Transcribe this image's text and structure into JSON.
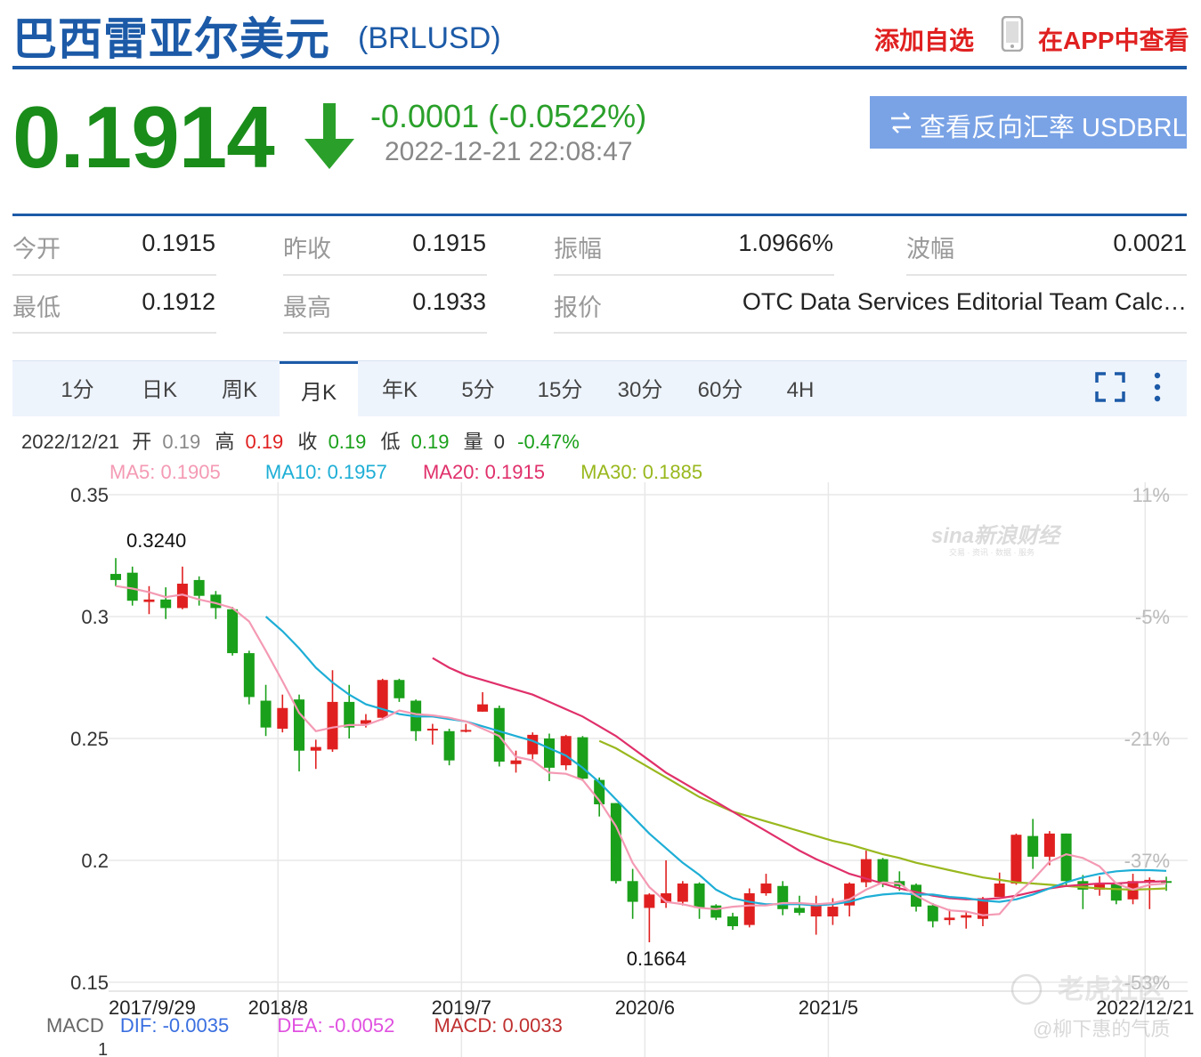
{
  "header": {
    "title": "巴西雷亚尔美元",
    "symbol": "(BRLUSD)",
    "add_favorite": "添加自选",
    "app_view": "在APP中查看"
  },
  "quote": {
    "price": "0.1914",
    "change": "-0.0001 (-0.0522%)",
    "timestamp": "2022-12-21 22:08:47",
    "reverse_button": "查看反向汇率 USDBRL",
    "down_color": "#2aa02a"
  },
  "stats": [
    {
      "label": "今开",
      "value": "0.1915"
    },
    {
      "label": "昨收",
      "value": "0.1915"
    },
    {
      "label": "振幅",
      "value": "1.0966%"
    },
    {
      "label": "波幅",
      "value": "0.0021"
    },
    {
      "label": "最低",
      "value": "0.1912"
    },
    {
      "label": "最高",
      "value": "0.1933"
    },
    {
      "label": "报价",
      "value": "OTC Data Services Editorial Team Calc…"
    }
  ],
  "tabs": [
    {
      "label": "1分",
      "active": false
    },
    {
      "label": "日K",
      "active": false
    },
    {
      "label": "周K",
      "active": false
    },
    {
      "label": "月K",
      "active": true
    },
    {
      "label": "年K",
      "active": false
    },
    {
      "label": "5分",
      "active": false
    },
    {
      "label": "15分",
      "active": false
    },
    {
      "label": "30分",
      "active": false
    },
    {
      "label": "60分",
      "active": false
    },
    {
      "label": "4H",
      "active": false
    }
  ],
  "chart_data": {
    "type": "candlestick",
    "info_line": {
      "date": "2022/12/21",
      "open_label": "开",
      "open": "0.19",
      "high_label": "高",
      "high": "0.19",
      "close_label": "收",
      "close": "0.19",
      "low_label": "低",
      "low": "0.19",
      "volume_label": "量",
      "volume": "0",
      "change_pct": "-0.47%"
    },
    "ma_legend": [
      {
        "label": "MA5: 0.1905",
        "color": "#f49ab4"
      },
      {
        "label": "MA10: 0.1957",
        "color": "#1eaed6"
      },
      {
        "label": "MA20: 0.1915",
        "color": "#e0306a"
      },
      {
        "label": "MA30: 0.1885",
        "color": "#99b81e"
      }
    ],
    "ylim": [
      0.15,
      0.35
    ],
    "y_ticks": [
      "0.35",
      "0.3",
      "0.25",
      "0.2",
      "0.15"
    ],
    "y_tick_values": [
      0.35,
      0.3,
      0.25,
      0.2,
      0.15
    ],
    "right_ticks": [
      "11%",
      "-5%",
      "-21%",
      "-37%",
      "-53%"
    ],
    "x_ticks": [
      {
        "index": 0,
        "label": "2017/9/29"
      },
      {
        "index": 10,
        "label": "2018/8"
      },
      {
        "index": 21,
        "label": "2019/7"
      },
      {
        "index": 32,
        "label": "2020/6"
      },
      {
        "index": 43,
        "label": "2021/5"
      },
      {
        "index": 62,
        "label": "2022/12/21"
      }
    ],
    "max_annotation": {
      "index": 0,
      "label": "0.3240"
    },
    "min_annotation": {
      "index": 32,
      "label": "0.1664"
    },
    "up_color": "#e02020",
    "down_color": "#1aa01a",
    "ohlc": [
      [
        0.3175,
        0.315,
        0.324,
        0.3125
      ],
      [
        0.318,
        0.3065,
        0.3205,
        0.3045
      ],
      [
        0.306,
        0.307,
        0.3125,
        0.301
      ],
      [
        0.307,
        0.3035,
        0.312,
        0.299
      ],
      [
        0.3035,
        0.3135,
        0.3205,
        0.303
      ],
      [
        0.315,
        0.3085,
        0.3165,
        0.3045
      ],
      [
        0.309,
        0.3035,
        0.3105,
        0.299
      ],
      [
        0.303,
        0.285,
        0.304,
        0.284
      ],
      [
        0.285,
        0.267,
        0.286,
        0.264
      ],
      [
        0.2655,
        0.2545,
        0.272,
        0.251
      ],
      [
        0.254,
        0.2625,
        0.268,
        0.2525
      ],
      [
        0.266,
        0.245,
        0.268,
        0.2365
      ],
      [
        0.245,
        0.2465,
        0.2495,
        0.2375
      ],
      [
        0.2455,
        0.265,
        0.278,
        0.2445
      ],
      [
        0.265,
        0.2545,
        0.272,
        0.25
      ],
      [
        0.256,
        0.2575,
        0.26,
        0.2545
      ],
      [
        0.2585,
        0.274,
        0.2745,
        0.2575
      ],
      [
        0.274,
        0.2665,
        0.2745,
        0.265
      ],
      [
        0.2655,
        0.253,
        0.266,
        0.249
      ],
      [
        0.2535,
        0.254,
        0.256,
        0.2475
      ],
      [
        0.253,
        0.241,
        0.254,
        0.239
      ],
      [
        0.253,
        0.2535,
        0.256,
        0.2525
      ],
      [
        0.261,
        0.264,
        0.269,
        0.261
      ],
      [
        0.2625,
        0.2405,
        0.2635,
        0.2385
      ],
      [
        0.2395,
        0.241,
        0.245,
        0.236
      ],
      [
        0.2435,
        0.2515,
        0.2525,
        0.2415
      ],
      [
        0.25,
        0.238,
        0.252,
        0.2325
      ],
      [
        0.239,
        0.251,
        0.2515,
        0.237
      ],
      [
        0.2505,
        0.2335,
        0.251,
        0.2325
      ],
      [
        0.233,
        0.223,
        0.234,
        0.218
      ],
      [
        0.2235,
        0.1915,
        0.2235,
        0.1905
      ],
      [
        0.1915,
        0.183,
        0.1965,
        0.176
      ],
      [
        0.1805,
        0.186,
        0.1865,
        0.1664
      ],
      [
        0.1825,
        0.1865,
        0.2,
        0.1805
      ],
      [
        0.183,
        0.1905,
        0.1915,
        0.1815
      ],
      [
        0.1905,
        0.1805,
        0.191,
        0.176
      ],
      [
        0.1815,
        0.1765,
        0.182,
        0.1755
      ],
      [
        0.177,
        0.173,
        0.1785,
        0.1715
      ],
      [
        0.1735,
        0.1865,
        0.1885,
        0.1725
      ],
      [
        0.1865,
        0.1905,
        0.1945,
        0.1855
      ],
      [
        0.1895,
        0.18,
        0.1915,
        0.1775
      ],
      [
        0.1805,
        0.1785,
        0.1855,
        0.1775
      ],
      [
        0.177,
        0.1815,
        0.1855,
        0.1695
      ],
      [
        0.177,
        0.181,
        0.1845,
        0.1735
      ],
      [
        0.1815,
        0.1905,
        0.191,
        0.177
      ],
      [
        0.191,
        0.2005,
        0.204,
        0.189
      ],
      [
        0.2005,
        0.191,
        0.201,
        0.189
      ],
      [
        0.1915,
        0.1895,
        0.1955,
        0.1875
      ],
      [
        0.19,
        0.181,
        0.1905,
        0.179
      ],
      [
        0.1815,
        0.175,
        0.1825,
        0.1725
      ],
      [
        0.1755,
        0.1765,
        0.18,
        0.1735
      ],
      [
        0.1765,
        0.1775,
        0.179,
        0.172
      ],
      [
        0.176,
        0.1845,
        0.185,
        0.173
      ],
      [
        0.185,
        0.1905,
        0.195,
        0.185
      ],
      [
        0.1905,
        0.2105,
        0.211,
        0.19
      ],
      [
        0.21,
        0.2015,
        0.217,
        0.1965
      ],
      [
        0.2015,
        0.211,
        0.212,
        0.198
      ],
      [
        0.211,
        0.1915,
        0.211,
        0.1895
      ],
      [
        0.1915,
        0.188,
        0.194,
        0.18
      ],
      [
        0.188,
        0.1905,
        0.1935,
        0.1855
      ],
      [
        0.1905,
        0.1835,
        0.191,
        0.182
      ],
      [
        0.184,
        0.1915,
        0.1945,
        0.182
      ],
      [
        0.1915,
        0.192,
        0.193,
        0.18
      ],
      [
        0.1915,
        0.1914,
        0.1933,
        0.1875
      ]
    ],
    "ma_series": {
      "MA5": [
        0.3125,
        0.3115,
        0.31,
        0.308,
        0.309,
        0.307,
        0.3055,
        0.3035,
        0.298,
        0.286,
        0.2735,
        0.2605,
        0.253,
        0.2545,
        0.2555,
        0.2555,
        0.258,
        0.2615,
        0.26,
        0.2595,
        0.2585,
        0.257,
        0.254,
        0.251,
        0.2425,
        0.241,
        0.236,
        0.2355,
        0.233,
        0.2245,
        0.214,
        0.199,
        0.189,
        0.183,
        0.182,
        0.1805,
        0.18,
        0.181,
        0.1815,
        0.1815,
        0.1825,
        0.1825,
        0.182,
        0.1825,
        0.184,
        0.188,
        0.191,
        0.1905,
        0.1855,
        0.182,
        0.1795,
        0.179,
        0.1775,
        0.178,
        0.186,
        0.192,
        0.1995,
        0.2025,
        0.201,
        0.1975,
        0.1905,
        0.188,
        0.19,
        0.1905
      ],
      "MA10": [
        null,
        null,
        null,
        null,
        null,
        null,
        null,
        null,
        null,
        0.3,
        0.294,
        0.287,
        0.279,
        0.273,
        0.268,
        0.264,
        0.262,
        0.26,
        0.259,
        0.259,
        0.258,
        0.257,
        0.255,
        0.253,
        0.251,
        0.249,
        0.246,
        0.243,
        0.238,
        0.232,
        0.225,
        0.218,
        0.211,
        0.205,
        0.199,
        0.194,
        0.188,
        0.1845,
        0.183,
        0.182,
        0.182,
        0.182,
        0.1815,
        0.182,
        0.183,
        0.185,
        0.186,
        0.1865,
        0.186,
        0.186,
        0.185,
        0.1845,
        0.1835,
        0.183,
        0.184,
        0.186,
        0.1885,
        0.191,
        0.193,
        0.1945,
        0.1955,
        0.196,
        0.196,
        0.1957
      ],
      "MA20": [
        null,
        null,
        null,
        null,
        null,
        null,
        null,
        null,
        null,
        null,
        null,
        null,
        null,
        null,
        null,
        null,
        null,
        null,
        null,
        0.283,
        0.279,
        0.276,
        0.274,
        0.272,
        0.27,
        0.268,
        0.265,
        0.262,
        0.259,
        0.255,
        0.251,
        0.246,
        0.241,
        0.236,
        0.232,
        0.228,
        0.224,
        0.22,
        0.216,
        0.212,
        0.208,
        0.204,
        0.2005,
        0.1975,
        0.1945,
        0.1925,
        0.1905,
        0.1885,
        0.187,
        0.1855,
        0.1845,
        0.184,
        0.184,
        0.1845,
        0.1855,
        0.187,
        0.1885,
        0.1895,
        0.19,
        0.1905,
        0.1905,
        0.191,
        0.1912,
        0.1915
      ],
      "MA30": [
        null,
        null,
        null,
        null,
        null,
        null,
        null,
        null,
        null,
        null,
        null,
        null,
        null,
        null,
        null,
        null,
        null,
        null,
        null,
        null,
        null,
        null,
        null,
        null,
        null,
        null,
        null,
        null,
        null,
        0.249,
        0.246,
        0.242,
        0.238,
        0.234,
        0.23,
        0.226,
        0.223,
        0.22,
        0.218,
        0.216,
        0.214,
        0.212,
        0.21,
        0.208,
        0.2065,
        0.2045,
        0.2025,
        0.201,
        0.199,
        0.1975,
        0.196,
        0.1945,
        0.193,
        0.192,
        0.191,
        0.1905,
        0.19,
        0.1895,
        0.189,
        0.1885,
        0.1882,
        0.188,
        0.1882,
        0.1885
      ]
    },
    "macd_legend": {
      "name": "MACD",
      "dif": "DIF: -0.0035",
      "dea": "DEA: -0.0052",
      "macd": "MACD: 0.0033"
    },
    "macd_axis_label": "1",
    "watermark_brand": "sina新浪财经",
    "watermark_sub": "交易 · 资讯 · 数据 · 服务",
    "watermark_forum": "老虎社区",
    "watermark_user": "@柳下惠的气质"
  }
}
